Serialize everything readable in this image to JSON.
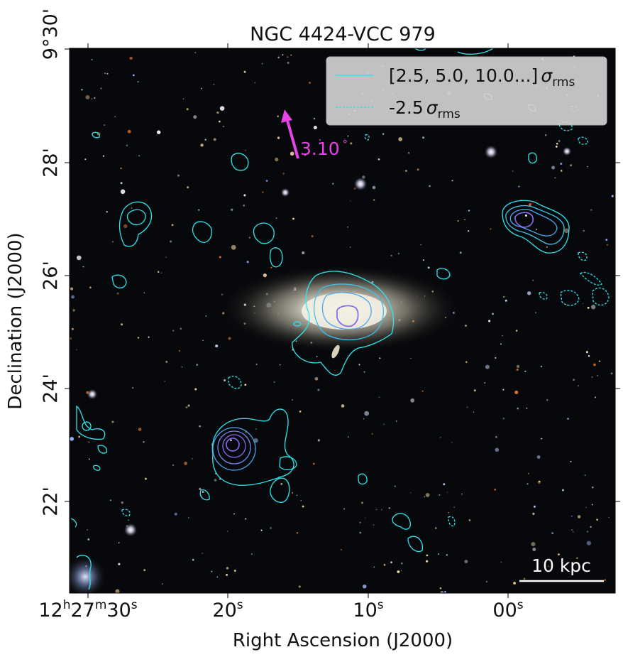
{
  "title": "NGC 4424-VCC 979",
  "axes": {
    "xlabel": "Right Ascension (J2000)",
    "ylabel": "Declination (J2000)",
    "x_ticks": [
      {
        "h": "12",
        "m": "27",
        "s": "30"
      },
      {
        "s": "20"
      },
      {
        "s": "10"
      },
      {
        "s": "00"
      }
    ],
    "y_ticks": [
      "9°30'",
      "28'",
      "26'",
      "24'",
      "22'"
    ]
  },
  "legend": {
    "solid_label": "[2.5, 5.0, 10.0...]",
    "dashed_label": "-2.5",
    "sigma_symbol": "σ",
    "sigma_sub": "rms",
    "position": "top-right"
  },
  "annotation": {
    "angle_text": "3.10",
    "degree_symbol": "°",
    "arrow_color": "#e744e7"
  },
  "scale_bar": {
    "text": "10 kpc"
  },
  "colors": {
    "contour_cyan": "#2be8ef",
    "contour_blue": "#4aa8f0",
    "contour_violet": "#8a6cf0",
    "sky": "#07080b",
    "galaxy_core": "#f4f1e2"
  }
}
